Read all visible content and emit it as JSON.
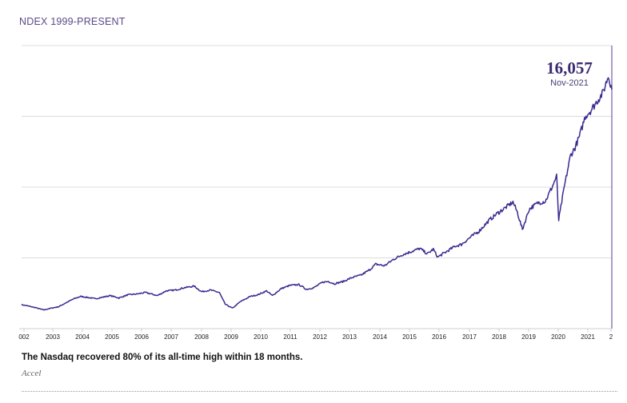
{
  "header": {
    "title": "NDEX 1999-PRESENT"
  },
  "chart_data": {
    "type": "line",
    "series": [
      {
        "values_by_year": [
          [
            2002.0,
            1520
          ],
          [
            2002.2,
            1450
          ],
          [
            2002.5,
            1320
          ],
          [
            2002.75,
            1190
          ],
          [
            2003.0,
            1300
          ],
          [
            2003.25,
            1390
          ],
          [
            2003.5,
            1640
          ],
          [
            2003.75,
            1880
          ],
          [
            2004.0,
            2050
          ],
          [
            2004.25,
            1980
          ],
          [
            2004.5,
            1900
          ],
          [
            2004.75,
            2000
          ],
          [
            2005.0,
            2100
          ],
          [
            2005.3,
            1950
          ],
          [
            2005.6,
            2150
          ],
          [
            2005.9,
            2200
          ],
          [
            2006.2,
            2300
          ],
          [
            2006.4,
            2200
          ],
          [
            2006.6,
            2100
          ],
          [
            2006.9,
            2400
          ],
          [
            2007.2,
            2450
          ],
          [
            2007.5,
            2600
          ],
          [
            2007.85,
            2700
          ],
          [
            2008.1,
            2350
          ],
          [
            2008.4,
            2450
          ],
          [
            2008.7,
            2300
          ],
          [
            2008.9,
            1550
          ],
          [
            2009.15,
            1300
          ],
          [
            2009.4,
            1700
          ],
          [
            2009.75,
            2050
          ],
          [
            2010.0,
            2150
          ],
          [
            2010.3,
            2400
          ],
          [
            2010.5,
            2100
          ],
          [
            2010.8,
            2550
          ],
          [
            2011.1,
            2750
          ],
          [
            2011.4,
            2800
          ],
          [
            2011.65,
            2500
          ],
          [
            2011.9,
            2600
          ],
          [
            2012.2,
            2950
          ],
          [
            2012.4,
            3000
          ],
          [
            2012.6,
            2850
          ],
          [
            2012.9,
            3000
          ],
          [
            2013.2,
            3250
          ],
          [
            2013.5,
            3400
          ],
          [
            2013.8,
            3750
          ],
          [
            2014.0,
            4100
          ],
          [
            2014.3,
            4000
          ],
          [
            2014.6,
            4400
          ],
          [
            2014.9,
            4700
          ],
          [
            2015.2,
            4900
          ],
          [
            2015.5,
            5100
          ],
          [
            2015.75,
            4750
          ],
          [
            2015.95,
            5050
          ],
          [
            2016.1,
            4550
          ],
          [
            2016.4,
            4900
          ],
          [
            2016.7,
            5250
          ],
          [
            2016.9,
            5350
          ],
          [
            2017.2,
            5800
          ],
          [
            2017.5,
            6200
          ],
          [
            2017.85,
            6900
          ],
          [
            2018.1,
            7300
          ],
          [
            2018.4,
            7700
          ],
          [
            2018.65,
            8050
          ],
          [
            2018.8,
            7400
          ],
          [
            2018.97,
            6300
          ],
          [
            2019.2,
            7600
          ],
          [
            2019.5,
            8000
          ],
          [
            2019.75,
            8100
          ],
          [
            2020.0,
            9100
          ],
          [
            2020.13,
            9700
          ],
          [
            2020.2,
            6900
          ],
          [
            2020.38,
            8900
          ],
          [
            2020.6,
            11000
          ],
          [
            2020.75,
            11500
          ],
          [
            2020.9,
            12200
          ],
          [
            2021.1,
            13500
          ],
          [
            2021.3,
            13900
          ],
          [
            2021.55,
            14600
          ],
          [
            2021.7,
            15000
          ],
          [
            2021.88,
            16057
          ],
          [
            2021.97,
            15500
          ],
          [
            2022.0,
            15200
          ]
        ]
      }
    ],
    "x_ticks": [
      "002",
      "2003",
      "2004",
      "2005",
      "2006",
      "2007",
      "2008",
      "2009",
      "2010",
      "2011",
      "2012",
      "2013",
      "2014",
      "2015",
      "2016",
      "2017",
      "2018",
      "2019",
      "2020",
      "2021",
      "2"
    ],
    "xlim": [
      2002,
      2022
    ],
    "ylim": [
      0,
      18000
    ],
    "y_gridlines": [
      4500,
      9000,
      13500,
      18000
    ],
    "grid": true,
    "line_color": "#3b2a8f",
    "annotation": {
      "value": "16,057",
      "date": "Nov-2021"
    }
  },
  "caption": "The Nasdaq recovered 80% of its all-time high within 18 months.",
  "source": "Accel"
}
